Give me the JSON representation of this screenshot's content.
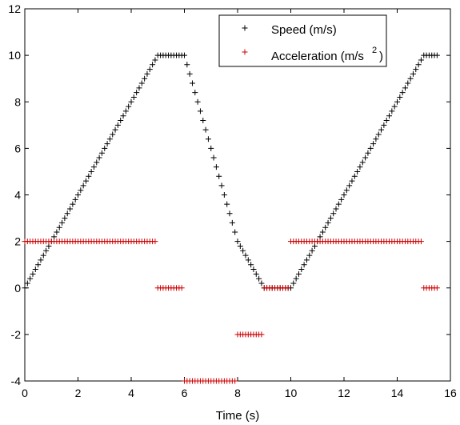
{
  "chart_data": {
    "type": "scatter",
    "title": "",
    "xlabel": "Time (s)",
    "ylabel": "",
    "xlim": [
      0,
      16
    ],
    "ylim": [
      -4,
      12
    ],
    "xticks": [
      0,
      2,
      4,
      6,
      8,
      10,
      12,
      14,
      16
    ],
    "yticks": [
      -4,
      -2,
      0,
      2,
      4,
      6,
      8,
      10,
      12
    ],
    "xtick_labels": [
      "0",
      "2",
      "4",
      "6",
      "8",
      "10",
      "12",
      "14",
      "16"
    ],
    "ytick_labels": [
      "-4",
      "-2",
      "0",
      "2",
      "4",
      "6",
      "8",
      "10",
      "12"
    ],
    "grid": false,
    "legend_position": "top-right",
    "marker": "+",
    "legend": [
      {
        "label": "Speed (m/s)",
        "color": "#000000"
      },
      {
        "label_main": "Acceleration (m/s",
        "label_sup": "2",
        "label_end": ")",
        "color": "#cc0000"
      }
    ],
    "series": [
      {
        "name": "Speed (m/s)",
        "color": "#000000",
        "points": [
          [
            0.0,
            0.0
          ],
          [
            0.1,
            0.2
          ],
          [
            0.2,
            0.4
          ],
          [
            0.3,
            0.6
          ],
          [
            0.4,
            0.8
          ],
          [
            0.5,
            1.0
          ],
          [
            0.6,
            1.2
          ],
          [
            0.7,
            1.4
          ],
          [
            0.8,
            1.6
          ],
          [
            0.9,
            1.8
          ],
          [
            1.0,
            2.0
          ],
          [
            1.1,
            2.2
          ],
          [
            1.2,
            2.4
          ],
          [
            1.3,
            2.6
          ],
          [
            1.4,
            2.8
          ],
          [
            1.5,
            3.0
          ],
          [
            1.6,
            3.2
          ],
          [
            1.7,
            3.4
          ],
          [
            1.8,
            3.6
          ],
          [
            1.9,
            3.8
          ],
          [
            2.0,
            4.0
          ],
          [
            2.1,
            4.2
          ],
          [
            2.2,
            4.4
          ],
          [
            2.3,
            4.6
          ],
          [
            2.4,
            4.8
          ],
          [
            2.5,
            5.0
          ],
          [
            2.6,
            5.2
          ],
          [
            2.7,
            5.4
          ],
          [
            2.8,
            5.6
          ],
          [
            2.9,
            5.8
          ],
          [
            3.0,
            6.0
          ],
          [
            3.1,
            6.2
          ],
          [
            3.2,
            6.4
          ],
          [
            3.3,
            6.6
          ],
          [
            3.4,
            6.8
          ],
          [
            3.5,
            7.0
          ],
          [
            3.6,
            7.2
          ],
          [
            3.7,
            7.4
          ],
          [
            3.8,
            7.6
          ],
          [
            3.9,
            7.8
          ],
          [
            4.0,
            8.0
          ],
          [
            4.1,
            8.2
          ],
          [
            4.2,
            8.4
          ],
          [
            4.3,
            8.6
          ],
          [
            4.4,
            8.8
          ],
          [
            4.5,
            9.0
          ],
          [
            4.6,
            9.2
          ],
          [
            4.7,
            9.4
          ],
          [
            4.8,
            9.6
          ],
          [
            4.9,
            9.8
          ],
          [
            5.0,
            10.0
          ],
          [
            5.1,
            10.0
          ],
          [
            5.2,
            10.0
          ],
          [
            5.3,
            10.0
          ],
          [
            5.4,
            10.0
          ],
          [
            5.5,
            10.0
          ],
          [
            5.6,
            10.0
          ],
          [
            5.7,
            10.0
          ],
          [
            5.8,
            10.0
          ],
          [
            5.9,
            10.0
          ],
          [
            6.0,
            10.0
          ],
          [
            6.1,
            9.6
          ],
          [
            6.2,
            9.2
          ],
          [
            6.3,
            8.8
          ],
          [
            6.4,
            8.4
          ],
          [
            6.5,
            8.0
          ],
          [
            6.6,
            7.6
          ],
          [
            6.7,
            7.2
          ],
          [
            6.8,
            6.8
          ],
          [
            6.9,
            6.4
          ],
          [
            7.0,
            6.0
          ],
          [
            7.1,
            5.6
          ],
          [
            7.2,
            5.2
          ],
          [
            7.3,
            4.8
          ],
          [
            7.4,
            4.4
          ],
          [
            7.5,
            4.0
          ],
          [
            7.6,
            3.6
          ],
          [
            7.7,
            3.2
          ],
          [
            7.8,
            2.8
          ],
          [
            7.9,
            2.4
          ],
          [
            8.0,
            2.0
          ],
          [
            8.1,
            1.8
          ],
          [
            8.2,
            1.6
          ],
          [
            8.3,
            1.4
          ],
          [
            8.4,
            1.2
          ],
          [
            8.5,
            1.0
          ],
          [
            8.6,
            0.8
          ],
          [
            8.7,
            0.6
          ],
          [
            8.8,
            0.4
          ],
          [
            8.9,
            0.2
          ],
          [
            9.0,
            0.0
          ],
          [
            9.1,
            0.0
          ],
          [
            9.2,
            0.0
          ],
          [
            9.3,
            0.0
          ],
          [
            9.4,
            0.0
          ],
          [
            9.5,
            0.0
          ],
          [
            9.6,
            0.0
          ],
          [
            9.7,
            0.0
          ],
          [
            9.8,
            0.0
          ],
          [
            9.9,
            0.0
          ],
          [
            10.0,
            0.0
          ],
          [
            10.1,
            0.2
          ],
          [
            10.2,
            0.4
          ],
          [
            10.3,
            0.6
          ],
          [
            10.4,
            0.8
          ],
          [
            10.5,
            1.0
          ],
          [
            10.6,
            1.2
          ],
          [
            10.7,
            1.4
          ],
          [
            10.8,
            1.6
          ],
          [
            10.9,
            1.8
          ],
          [
            11.0,
            2.0
          ],
          [
            11.1,
            2.2
          ],
          [
            11.2,
            2.4
          ],
          [
            11.3,
            2.6
          ],
          [
            11.4,
            2.8
          ],
          [
            11.5,
            3.0
          ],
          [
            11.6,
            3.2
          ],
          [
            11.7,
            3.4
          ],
          [
            11.8,
            3.6
          ],
          [
            11.9,
            3.8
          ],
          [
            12.0,
            4.0
          ],
          [
            12.1,
            4.2
          ],
          [
            12.2,
            4.4
          ],
          [
            12.3,
            4.6
          ],
          [
            12.4,
            4.8
          ],
          [
            12.5,
            5.0
          ],
          [
            12.6,
            5.2
          ],
          [
            12.7,
            5.4
          ],
          [
            12.8,
            5.6
          ],
          [
            12.9,
            5.8
          ],
          [
            13.0,
            6.0
          ],
          [
            13.1,
            6.2
          ],
          [
            13.2,
            6.4
          ],
          [
            13.3,
            6.6
          ],
          [
            13.4,
            6.8
          ],
          [
            13.5,
            7.0
          ],
          [
            13.6,
            7.2
          ],
          [
            13.7,
            7.4
          ],
          [
            13.8,
            7.6
          ],
          [
            13.9,
            7.8
          ],
          [
            14.0,
            8.0
          ],
          [
            14.1,
            8.2
          ],
          [
            14.2,
            8.4
          ],
          [
            14.3,
            8.6
          ],
          [
            14.4,
            8.8
          ],
          [
            14.5,
            9.0
          ],
          [
            14.6,
            9.2
          ],
          [
            14.7,
            9.4
          ],
          [
            14.8,
            9.6
          ],
          [
            14.9,
            9.8
          ],
          [
            15.0,
            10.0
          ],
          [
            15.1,
            10.0
          ],
          [
            15.2,
            10.0
          ],
          [
            15.3,
            10.0
          ],
          [
            15.4,
            10.0
          ],
          [
            15.5,
            10.0
          ]
        ]
      },
      {
        "name": "Acceleration (m/s2)",
        "color": "#cc0000",
        "points": [
          [
            0.0,
            2
          ],
          [
            0.1,
            2
          ],
          [
            0.2,
            2
          ],
          [
            0.3,
            2
          ],
          [
            0.4,
            2
          ],
          [
            0.5,
            2
          ],
          [
            0.6,
            2
          ],
          [
            0.7,
            2
          ],
          [
            0.8,
            2
          ],
          [
            0.9,
            2
          ],
          [
            1.0,
            2
          ],
          [
            1.1,
            2
          ],
          [
            1.2,
            2
          ],
          [
            1.3,
            2
          ],
          [
            1.4,
            2
          ],
          [
            1.5,
            2
          ],
          [
            1.6,
            2
          ],
          [
            1.7,
            2
          ],
          [
            1.8,
            2
          ],
          [
            1.9,
            2
          ],
          [
            2.0,
            2
          ],
          [
            2.1,
            2
          ],
          [
            2.2,
            2
          ],
          [
            2.3,
            2
          ],
          [
            2.4,
            2
          ],
          [
            2.5,
            2
          ],
          [
            2.6,
            2
          ],
          [
            2.7,
            2
          ],
          [
            2.8,
            2
          ],
          [
            2.9,
            2
          ],
          [
            3.0,
            2
          ],
          [
            3.1,
            2
          ],
          [
            3.2,
            2
          ],
          [
            3.3,
            2
          ],
          [
            3.4,
            2
          ],
          [
            3.5,
            2
          ],
          [
            3.6,
            2
          ],
          [
            3.7,
            2
          ],
          [
            3.8,
            2
          ],
          [
            3.9,
            2
          ],
          [
            4.0,
            2
          ],
          [
            4.1,
            2
          ],
          [
            4.2,
            2
          ],
          [
            4.3,
            2
          ],
          [
            4.4,
            2
          ],
          [
            4.5,
            2
          ],
          [
            4.6,
            2
          ],
          [
            4.7,
            2
          ],
          [
            4.8,
            2
          ],
          [
            4.9,
            2
          ],
          [
            5.0,
            0
          ],
          [
            5.1,
            0
          ],
          [
            5.2,
            0
          ],
          [
            5.3,
            0
          ],
          [
            5.4,
            0
          ],
          [
            5.5,
            0
          ],
          [
            5.6,
            0
          ],
          [
            5.7,
            0
          ],
          [
            5.8,
            0
          ],
          [
            5.9,
            0
          ],
          [
            6.0,
            -4
          ],
          [
            6.1,
            -4
          ],
          [
            6.2,
            -4
          ],
          [
            6.3,
            -4
          ],
          [
            6.4,
            -4
          ],
          [
            6.5,
            -4
          ],
          [
            6.6,
            -4
          ],
          [
            6.7,
            -4
          ],
          [
            6.8,
            -4
          ],
          [
            6.9,
            -4
          ],
          [
            7.0,
            -4
          ],
          [
            7.1,
            -4
          ],
          [
            7.2,
            -4
          ],
          [
            7.3,
            -4
          ],
          [
            7.4,
            -4
          ],
          [
            7.5,
            -4
          ],
          [
            7.6,
            -4
          ],
          [
            7.7,
            -4
          ],
          [
            7.8,
            -4
          ],
          [
            7.9,
            -4
          ],
          [
            8.0,
            -2
          ],
          [
            8.1,
            -2
          ],
          [
            8.2,
            -2
          ],
          [
            8.3,
            -2
          ],
          [
            8.4,
            -2
          ],
          [
            8.5,
            -2
          ],
          [
            8.6,
            -2
          ],
          [
            8.7,
            -2
          ],
          [
            8.8,
            -2
          ],
          [
            8.9,
            -2
          ],
          [
            9.0,
            0
          ],
          [
            9.1,
            0
          ],
          [
            9.2,
            0
          ],
          [
            9.3,
            0
          ],
          [
            9.4,
            0
          ],
          [
            9.5,
            0
          ],
          [
            9.6,
            0
          ],
          [
            9.7,
            0
          ],
          [
            9.8,
            0
          ],
          [
            9.9,
            0
          ],
          [
            10.0,
            2
          ],
          [
            10.1,
            2
          ],
          [
            10.2,
            2
          ],
          [
            10.3,
            2
          ],
          [
            10.4,
            2
          ],
          [
            10.5,
            2
          ],
          [
            10.6,
            2
          ],
          [
            10.7,
            2
          ],
          [
            10.8,
            2
          ],
          [
            10.9,
            2
          ],
          [
            11.0,
            2
          ],
          [
            11.1,
            2
          ],
          [
            11.2,
            2
          ],
          [
            11.3,
            2
          ],
          [
            11.4,
            2
          ],
          [
            11.5,
            2
          ],
          [
            11.6,
            2
          ],
          [
            11.7,
            2
          ],
          [
            11.8,
            2
          ],
          [
            11.9,
            2
          ],
          [
            12.0,
            2
          ],
          [
            12.1,
            2
          ],
          [
            12.2,
            2
          ],
          [
            12.3,
            2
          ],
          [
            12.4,
            2
          ],
          [
            12.5,
            2
          ],
          [
            12.6,
            2
          ],
          [
            12.7,
            2
          ],
          [
            12.8,
            2
          ],
          [
            12.9,
            2
          ],
          [
            13.0,
            2
          ],
          [
            13.1,
            2
          ],
          [
            13.2,
            2
          ],
          [
            13.3,
            2
          ],
          [
            13.4,
            2
          ],
          [
            13.5,
            2
          ],
          [
            13.6,
            2
          ],
          [
            13.7,
            2
          ],
          [
            13.8,
            2
          ],
          [
            13.9,
            2
          ],
          [
            14.0,
            2
          ],
          [
            14.1,
            2
          ],
          [
            14.2,
            2
          ],
          [
            14.3,
            2
          ],
          [
            14.4,
            2
          ],
          [
            14.5,
            2
          ],
          [
            14.6,
            2
          ],
          [
            14.7,
            2
          ],
          [
            14.8,
            2
          ],
          [
            14.9,
            2
          ],
          [
            15.0,
            0
          ],
          [
            15.1,
            0
          ],
          [
            15.2,
            0
          ],
          [
            15.3,
            0
          ],
          [
            15.4,
            0
          ],
          [
            15.5,
            0
          ]
        ]
      }
    ]
  }
}
